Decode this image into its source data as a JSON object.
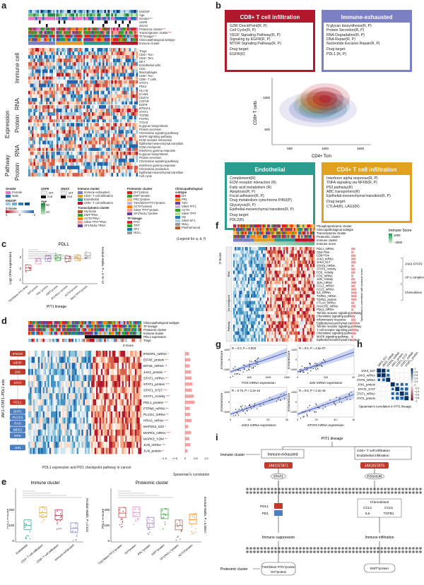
{
  "panels": {
    "a": "a",
    "b": "b",
    "c": "c",
    "d": "d",
    "e": "e",
    "f": "f",
    "g": "g",
    "h": "h",
    "i": "i"
  },
  "a": {
    "annot_rows": [
      "KNOSP",
      "Age",
      "Gender",
      "USP8",
      "GNAS",
      "Proteomic cluster",
      "Transcriptomic cluster",
      "TF lineage",
      "Clinicopathological subtype",
      "Immune cluster"
    ],
    "annot_stars": [
      "",
      "",
      "***",
      "",
      "",
      "***",
      "***",
      "***",
      "",
      ""
    ],
    "section_labels": [
      "Immune cell",
      "RNA",
      "Protein",
      "RNA",
      "Protein"
    ],
    "group_labels": [
      "Expression",
      "Pathway"
    ],
    "immune_rows": [
      "Tregs",
      "CD4+ Tcm",
      "CD4+ Tem",
      "NKT",
      "Endothelial cells",
      "CDC",
      "Macrophages",
      "CD8+ Tcm",
      "CD8+ T cells"
    ],
    "rna_rows": [
      "STAT1",
      "PDL1",
      "HLA-B",
      "ICAM1",
      "CD274",
      "CSF1R",
      "EGFR"
    ],
    "protein_rows": [
      "BTN3A1",
      "STAT1",
      "TGFB2",
      "FGFR1",
      "ITGA3"
    ],
    "pathway_rna_rows": [
      "N glycan biosynthesis",
      "Protein secretion",
      "Chemokine signaling pathway",
      "MAPK signaling pathway",
      "ECM receptor interaction",
      "Epithelial-mesenchymal transition",
      "G2M checkpoint",
      "Interferon gamma response"
    ],
    "pathway_prot_rows": [
      "N glycan biosynthesis",
      "Protein secretion",
      "Chemokine signaling pathway",
      "Interferon gamma response",
      "Chemokine production",
      "Epithelial-mesenchymal transition",
      "Cell cycle"
    ],
    "legend": {
      "gender_title": "Gender",
      "gender": [
        "Female",
        "Male"
      ],
      "usp8_title": "USP8",
      "usp8": [
        "WT",
        "mut"
      ],
      "gnas_title": "GNAS",
      "gnas": [
        "WT",
        "mut"
      ],
      "knosp_title": "KNOSP",
      "age_title": "Age",
      "age_range": [
        "80",
        "20"
      ],
      "zscore_title": "Z-Score",
      "zscore_range": [
        "3",
        "0",
        "−3"
      ],
      "immune_title": "Immune cluster",
      "immune": [
        "Immune-exhausted",
        "CD4+ T cell infiltration",
        "Endothelial",
        "CD8+ T cell infiltration"
      ],
      "trans_title": "Transcriptomic cluster",
      "trans": [
        "Hormone",
        "EMT^RNA",
        "ACTH^RNA",
        "Silent TPIT^RNA",
        "SF1/NULL^RNA"
      ],
      "prot_title": "Proteomic cluster",
      "prot": [
        "GH^protein",
        "EMT^protein",
        "PRL^protein",
        "TSH/Silent PIT1^protein",
        "ACTH^protein",
        "Silent TPIT^protein",
        "SF1/NULL^protein"
      ],
      "tf_title": "TF lineage",
      "tf": [
        "PIT1",
        "TPIT",
        "SF1",
        "NULL"
      ],
      "clin_title": "Clinicopathological subtype",
      "clin": [
        "GH",
        "PRL",
        "TSH",
        "Silent PIT1",
        "ACTH",
        "Silent TPIT",
        "SN",
        "Silent SF1",
        "NULL",
        "Plurihormonal"
      ],
      "note": "(Legend for a, d, f)"
    }
  },
  "b": {
    "boxes": [
      {
        "title": "CD8+ T cell infiltration",
        "color": "#b2182b",
        "lines": [
          "G2M CheckPoint(R, P)",
          "Cell Cycle(R, P)",
          "VEGF Signaling Pathway(R, P)",
          "Signaling by EGFR(R, P)",
          "MTOR Signaling Pathway(R, P)",
          "Drug target:",
          "EGFR(R)"
        ]
      },
      {
        "title": "Immune-exhausted",
        "color": "#7b7fc4",
        "lines": [
          "N glycan biosynthesis(R, P)",
          "Protein Secretion(R, P)",
          "RNA Degradation(R, P)",
          "DNA Repair(R, P)",
          "Nucleotide Excision Repair(R, P)",
          "Drug target:",
          "PDL1 (R, P)"
        ]
      },
      {
        "title": "Endothelial",
        "color": "#2a9d8f",
        "lines": [
          "Complement(R)",
          "ECM receptor interaction (R)",
          "Fatty acid metabolism (R)",
          "Apoptosis(R, P)",
          "Focal adhesion(R, P)",
          "Drug metabolism cytochrome P450(P)",
          "Glycolysis(R, P)",
          "Epithelial-mesenchymal transition(R, P)",
          "Drug target:",
          "PDL2(R)"
        ]
      },
      {
        "title": "CD4+ T cell infiltration",
        "color": "#e0a020",
        "lines": [
          "Interferon alpha response(R, P)",
          "TNFA signaling via NFKB(R, P)",
          "P53 pathway(R)",
          "ABC transporters(R)",
          "Epithelial-mesenchymal transition(R, P)",
          "Drug target:",
          "CTLA4(R), LAG3(R)"
        ]
      }
    ],
    "xlabel": "CD4+ Tcm",
    "ylabel": "CD8+ T cells",
    "xticks": [
      "500",
      "1000",
      "1500"
    ],
    "yticks": [
      "500",
      "1000"
    ]
  },
  "c": {
    "title": "PDL1",
    "ylabel": "Log2 (RNA expression)",
    "xlabel": "PIT1 lineage",
    "stat": "Kruskal–Wallis, P = 2.7e−12",
    "groups": [
      "TSH/Silent PIT1^RNA",
      "GH^protein",
      "PRL^protein",
      "EMT^protein",
      "SF1/NULL^protein",
      "ACTH^protein",
      "Silent TPIT^protein"
    ],
    "colors": [
      "#d62728",
      "#e377c2",
      "#9467bd",
      "#2ca02c",
      "#8c564b",
      "#ff7f0e",
      "#7f7f7f"
    ],
    "yticks": [
      "1",
      "2",
      "3"
    ]
  },
  "d": {
    "side_title": "JAK1–STAT1–PDL1 axis",
    "annot": [
      "Clinicopathological subtype",
      "TF lineage",
      "Proteomic cluster",
      "Immune cluster",
      "PDL1 expression",
      "Tregs"
    ],
    "zscore": "Z-Score",
    "pathway_boxes": [
      "IFNGR",
      "eIF4F",
      "JAK",
      "STAT",
      "PDL1",
      "SHP1",
      "PLCG1",
      "RAS",
      "MEK2",
      "ERK",
      "JUN"
    ],
    "rows": [
      "IFNGR1_mRNA *",
      "EIF4E_protein **",
      "EIF4E_mRNA **",
      "JAK1_protein **",
      "STAT1_mRNA **",
      "STAT1_protein ***",
      "STAT1_S727 ***",
      "STAT1_Activity ***",
      "PDL1_protein ***",
      "PTPN6_mRNA **",
      "PLCG1_mRNA **",
      "HRAS_mRNA ***",
      "MAP2K2_S23 *",
      "MAPK3_mRNA ***",
      "MAPK3_Y204 **",
      "JUN_mRNA ***",
      "JUN_protein *"
    ],
    "caption": "PDL1 expression and PD1 checkpoint pathway in cancer",
    "corr_label": "Spearman's correlation",
    "corr_ticks": [
      "−1.0",
      "−0.5",
      "0",
      "0.5",
      "1.0"
    ],
    "corr_values": [
      0.18,
      0.25,
      0.22,
      0.28,
      0.3,
      0.35,
      0.32,
      0.4,
      0.45,
      0.22,
      0.24,
      0.3,
      0.15,
      0.28,
      0.2,
      0.25,
      0.12
    ]
  },
  "e": {
    "left_title": "Immune cluster",
    "right_title": "Proteomic cluster",
    "ylabel_left": "PDL1 H-score",
    "ylabel_right": "PDL1 H-score",
    "stat_left": "Kruskal–Wallis, P = 0.015",
    "stat_right": "Kruskal–Wallis, P = 0.00017",
    "left_groups": [
      "Endothelial",
      "CD4+ T cell infiltration",
      "CD8+ T cell infiltration",
      "Immune-exhausted"
    ],
    "right_groups": [
      "TSH/Silent PIT1^protein",
      "GH^protein",
      "PRL^protein",
      "EMT^protein",
      "SF1/NULL^protein",
      "ACTH^protein"
    ],
    "left_colors": [
      "#2a9d8f",
      "#e0a020",
      "#b2182b",
      "#7b7fc4"
    ],
    "right_colors": [
      "#d62728",
      "#e377c2",
      "#9467bd",
      "#2ca02c",
      "#8c564b",
      "#ff7f0e"
    ],
    "yticks_left": [
      "0",
      "100",
      "200"
    ],
    "yticks_right": [
      "0",
      "100",
      "200"
    ]
  },
  "f": {
    "annot": [
      "Phosphoproteomic cluster",
      "Clinicopathological subtype",
      "Transcriptomic cluster",
      "Proteomic cluster",
      "Immune cluster",
      "Immune score"
    ],
    "immune_score_title": "Immune Score",
    "immune_score_range": [
      "1000",
      "−1500"
    ],
    "zscore": "Z-Score",
    "side_groups": [
      "RNA",
      "Immune checkpoint",
      "Pathway"
    ],
    "rows": [
      "PDL1_mRNA",
      "CD4+Tem",
      "CD8+Tcm",
      "JAK3_mRNA",
      "JAK3_S17",
      "STAT6_mRNA",
      "STAT6_Activity",
      "FOS_Activity",
      "FOS_mRNA",
      "JUN_Activity",
      "JUN_mRNA",
      "CCL2_mRNA",
      "CCL5_mRNA",
      "IL6_mRNA",
      "TGFB1_mRNA",
      "TGFB1_protein",
      "CTLA4_mRNA",
      "HAVCR2_mRNA",
      "PDL2_mRNA",
      "Toll like receptor signaling pathway",
      "Chemokine signaling pathway",
      "Inflammatory response",
      "Epithelial-mesenchymal transition",
      "Toll like receptor signaling pathway",
      "T cell receptor signaling pathway",
      "Chemokine signaling pathway",
      "MAPK signaling pathway",
      "Epithelial-mesenchymal transition"
    ],
    "brackets": [
      "JAK3-STAT6",
      "AP-1 complex",
      "Chemokines"
    ],
    "corr_label": "Spearman's correlation with immune score"
  },
  "g": {
    "plots": [
      {
        "stat": "R = 0.3, P = 0.003",
        "xlabel": "FOS mRNA expression",
        "ylabel": "ImmuneScore",
        "xticks": [
          "0",
          "500",
          "1000",
          "1500"
        ]
      },
      {
        "stat": "R = 0.5, P = 2.5e-07",
        "xlabel": "JUN mRNA expression",
        "ylabel": "ImmuneScore",
        "xticks": [
          "0",
          "100",
          "200"
        ]
      },
      {
        "stat": "R = 0.75, P < 2.2e-16",
        "xlabel": "JAK3 mRNA expression",
        "ylabel": "ImmuneScore",
        "xticks": [
          "0",
          "10",
          "20",
          "30"
        ]
      },
      {
        "stat": "R = 0.8, P < 2.2e-16",
        "xlabel": "STAT6 mRNA expression",
        "ylabel": "ImmuneScore",
        "xticks": [
          "0",
          "20",
          "40",
          "60"
        ]
      }
    ],
    "yticks": [
      "1000",
      "0",
      "−1000"
    ]
  },
  "h": {
    "labels": [
      "JAK3_S17",
      "JAK3_mRNA",
      "STAT6_mRNA",
      "JAK1_protein",
      "STAT1_S727",
      "STAT1_mRNA",
      "STAT1_protein"
    ],
    "scale": [
      "1",
      "0.8",
      "0.6",
      "0.4",
      "0.2",
      "0",
      "−0.2",
      "−0.4",
      "−0.6",
      "−0.8",
      "−1"
    ],
    "caption": "Spearman's correlation in PIT1 lineage",
    "matrix": [
      [
        1,
        0.9,
        0.6,
        0.2,
        0.1,
        0.1,
        0.1
      ],
      [
        0.9,
        1,
        0.7,
        0.2,
        0.1,
        0.1,
        0.1
      ],
      [
        0.6,
        0.7,
        1,
        0.3,
        0.2,
        0.2,
        0.2
      ],
      [
        0.2,
        0.2,
        0.3,
        1,
        0.6,
        0.7,
        0.6
      ],
      [
        0.1,
        0.1,
        0.2,
        0.6,
        1,
        0.7,
        0.8
      ],
      [
        0.1,
        0.1,
        0.2,
        0.7,
        0.7,
        1,
        0.8
      ],
      [
        0.1,
        0.1,
        0.2,
        0.6,
        0.8,
        0.8,
        1
      ]
    ]
  },
  "i": {
    "pit1": "PIT1 lineage",
    "immune_cluster": "Immune cluster",
    "left_box": "Immune-exhausted",
    "right_box": [
      "CD4+ T cell infiltration",
      "Endothelial infiltration"
    ],
    "jak1": "JAK1/STAT1",
    "jak3": "JAK3/STAT6",
    "stat1": "STAT1",
    "fosjun": "FOS/JUN",
    "pdl1": "PDL1",
    "pd1": "PD1",
    "suppression": "Immune suppression",
    "infiltration": "Immune infiltration",
    "chemokines_title": "Chemokines",
    "chemokines": [
      "CCL2",
      "CCL5",
      "IL6",
      "TGFB1"
    ],
    "proteomic_cluster": "Proteomic cluster",
    "left_end": [
      "TSH/Silent PIT1^protein",
      "GH^protein"
    ],
    "right_end": "EMT^protein"
  }
}
